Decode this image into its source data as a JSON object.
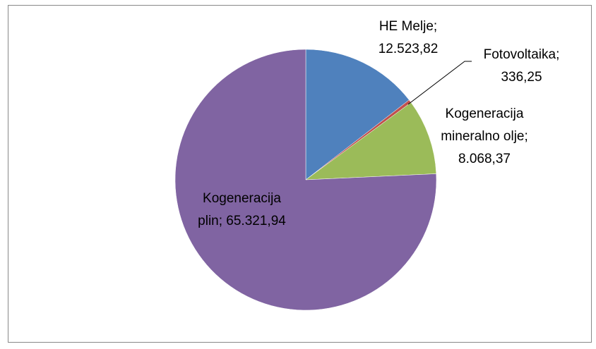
{
  "chart_data": {
    "type": "pie",
    "categories": [
      "HE Melje;",
      "Fotovoltaika;",
      "Kogeneracija mineralno olje;",
      "Kogeneracija plin;"
    ],
    "values": [
      12523.82,
      336.25,
      8068.37,
      65321.94
    ],
    "value_labels": [
      "12.523,82",
      "336,25",
      "8.068,37",
      "65.321,94"
    ],
    "colors": [
      "#4f81bd",
      "#c0504d",
      "#9bbb59",
      "#8064a2"
    ]
  }
}
